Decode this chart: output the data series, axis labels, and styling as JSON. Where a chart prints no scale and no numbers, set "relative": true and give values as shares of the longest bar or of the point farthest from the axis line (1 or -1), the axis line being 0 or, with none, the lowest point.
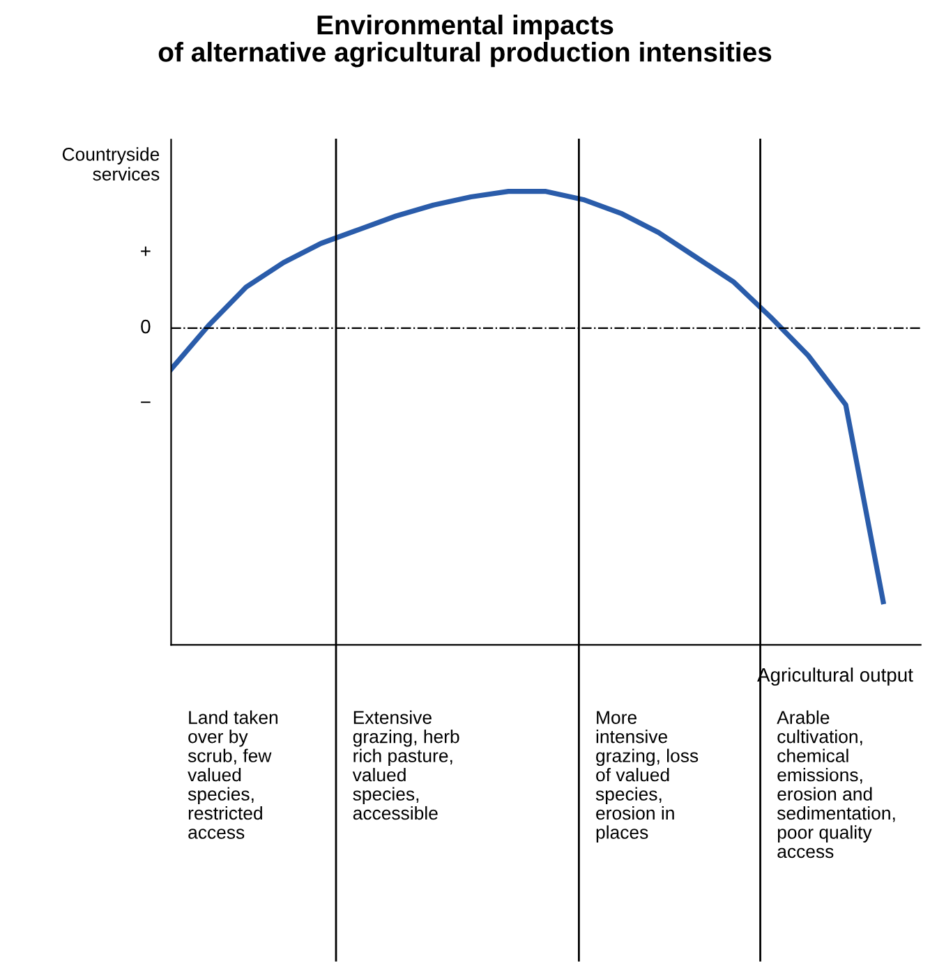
{
  "chart_data": {
    "type": "line",
    "title": "Environmental impacts\nof alternative agricultural production intensities",
    "xlabel": "Agricultural output",
    "ylabel": "Countryside\nservices",
    "categories": [
      null,
      null,
      null,
      null,
      null,
      null,
      null,
      null,
      null,
      null,
      null,
      null,
      null,
      null,
      null,
      null,
      null,
      null,
      null,
      null
    ],
    "series": [
      {
        "color": "#2a5caa",
        "values": [
          -0.15,
          0.01,
          0.15,
          0.24,
          0.31,
          0.36,
          0.41,
          0.45,
          0.48,
          0.5,
          0.5,
          0.47,
          0.42,
          0.35,
          0.26,
          0.17,
          0.04,
          -0.1,
          -0.28,
          -1
        ]
      }
    ],
    "relative": true,
    "grid": false,
    "legend": false,
    "marker": "none",
    "line_style": "solid",
    "ref_lines": [
      {
        "axis": "y",
        "value": 0,
        "label": "0",
        "line_style": "dashdot",
        "color": "#000000"
      }
    ],
    "annotations": [
      "+",
      "−",
      "Land taken\nover by\nscrub, few\nvalued\nspecies,\nrestricted\naccess",
      "Extensive\ngrazing, herb\nrich pasture,\nvalued\nspecies,\naccessible",
      "More\nintensive\ngrazing, loss\nof valued\nspecies,\nerosion in\nplaces",
      "Arable\ncultivation,\nchemical\nemissions,\nerosion and\nsedimentation,\npoor quality\naccess"
    ]
  }
}
